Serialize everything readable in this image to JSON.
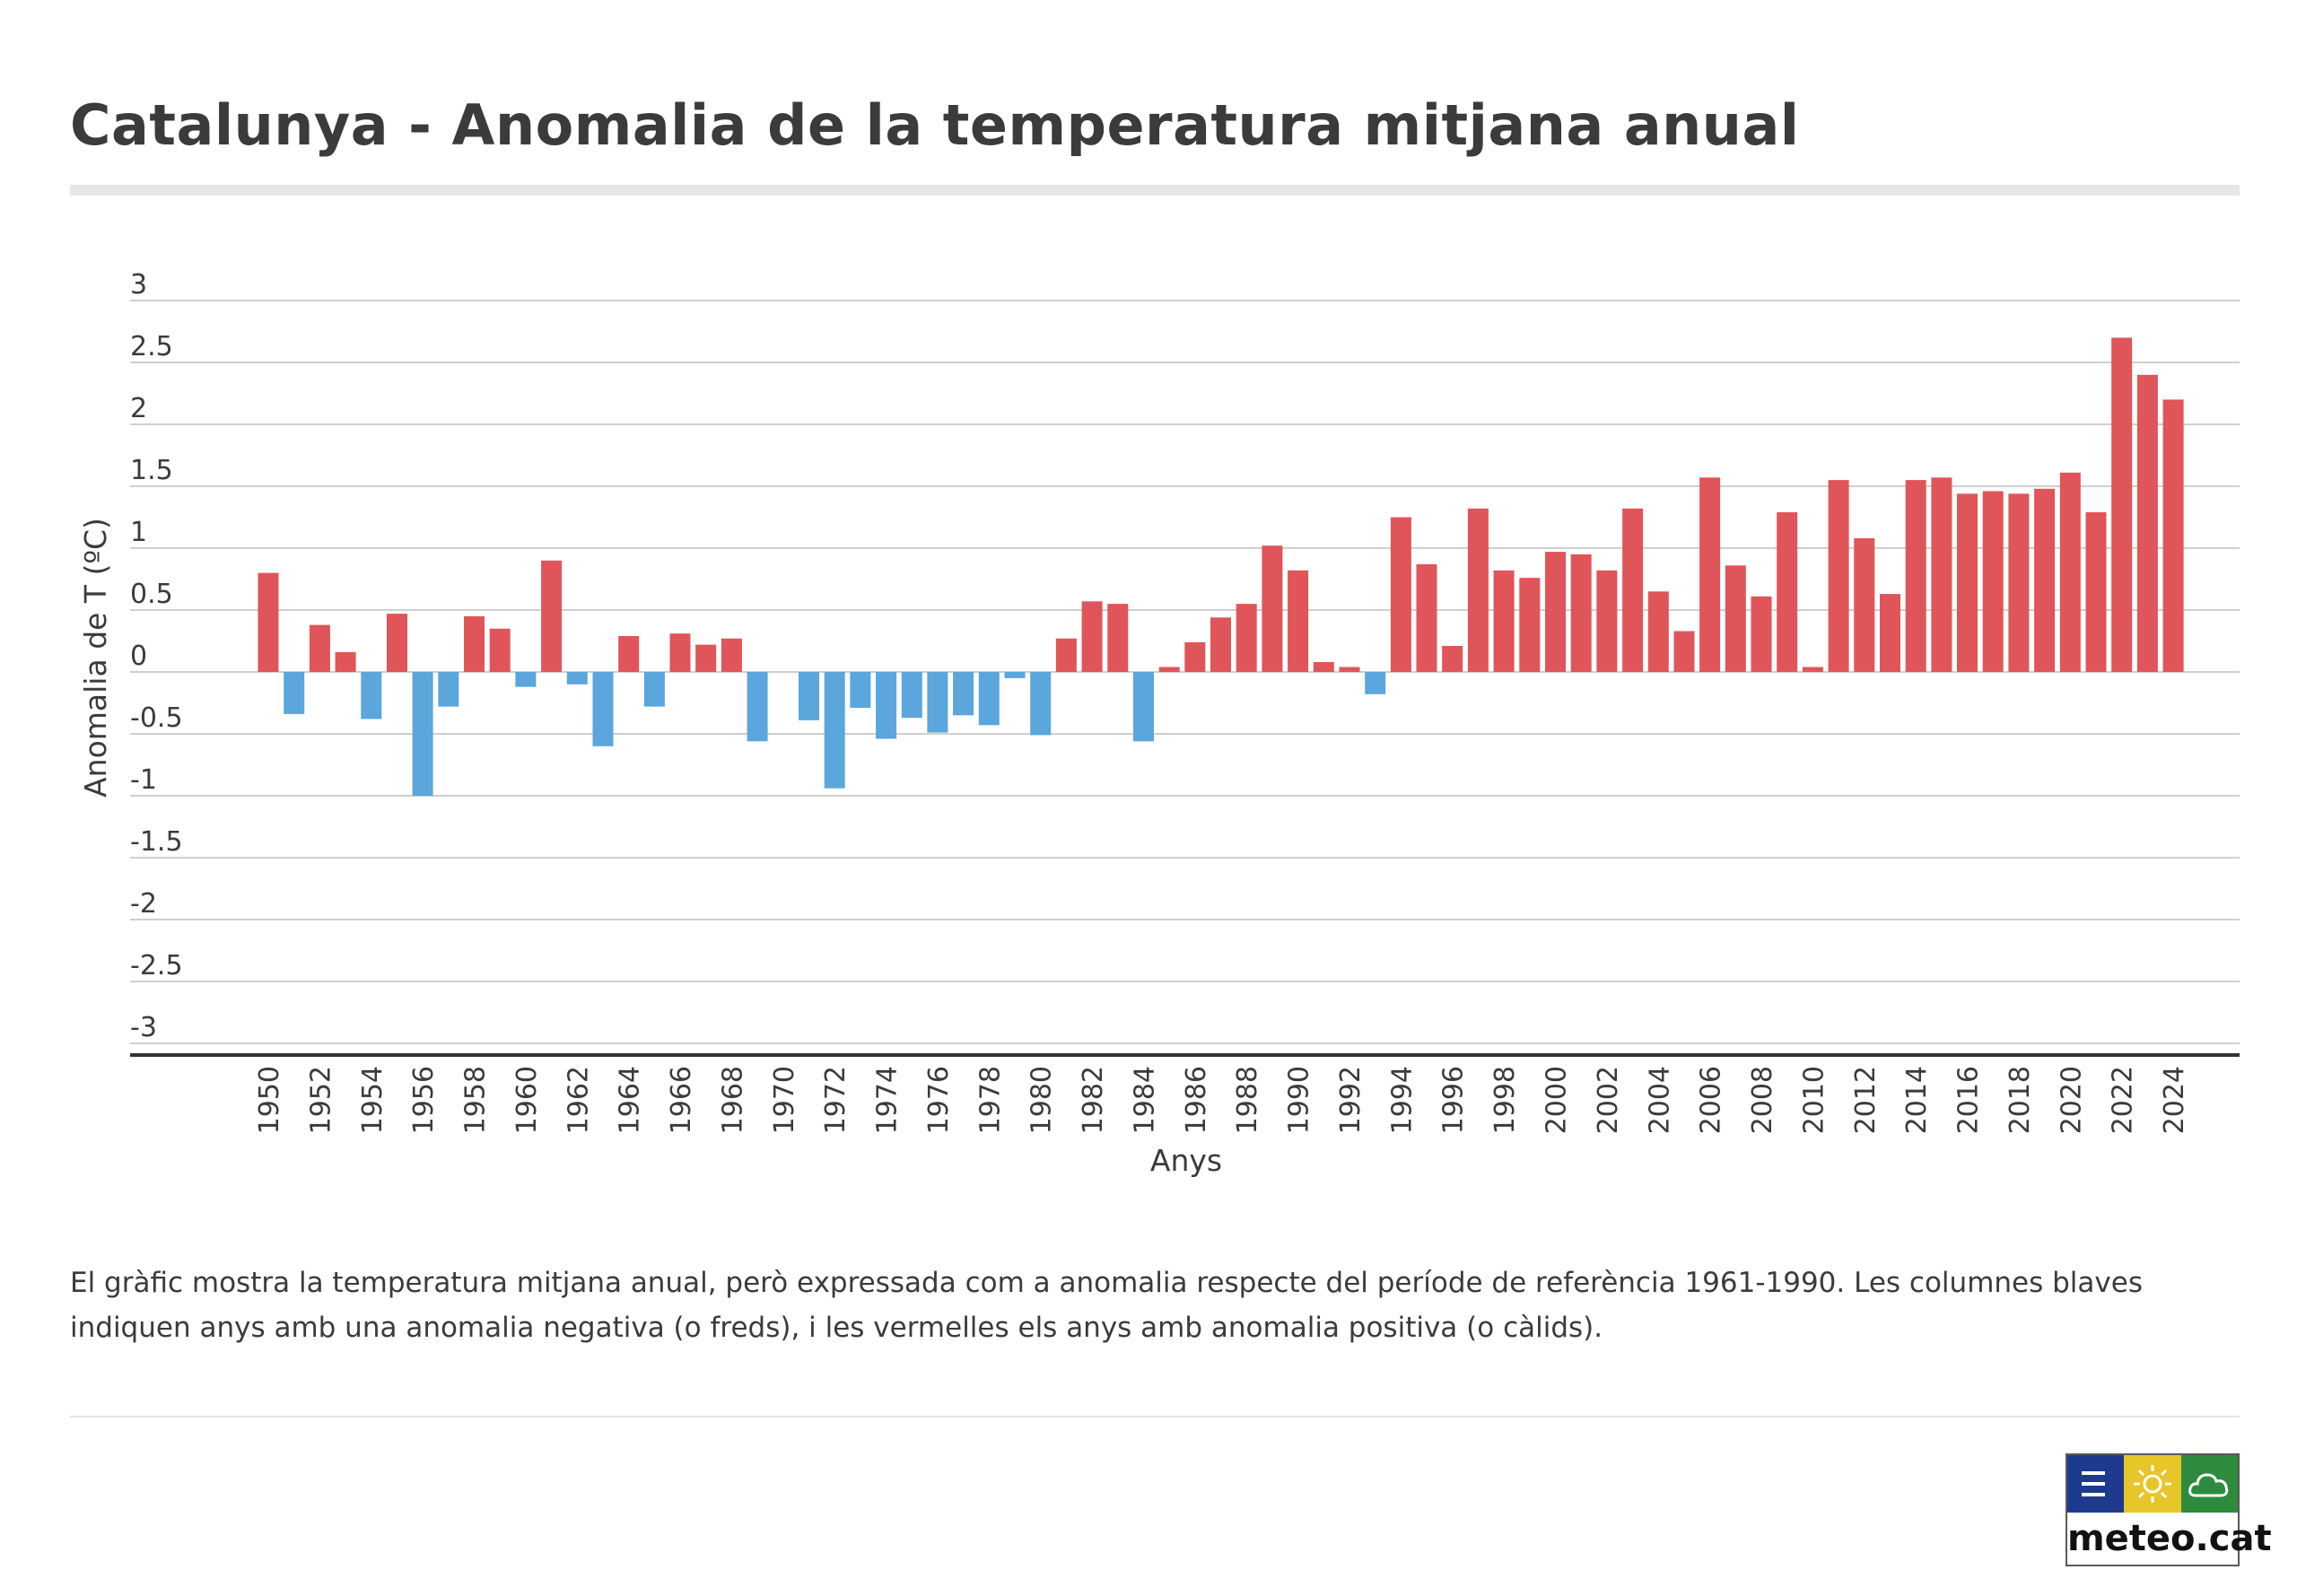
{
  "page": {
    "title": "Catalunya - Anomalia de la temperatura mitjana anual",
    "description": "El gràfic mostra la temperatura mitjana anual, però expressada com a anomalia respecte del període de referència 1961-1990. Les columnes blaves indiquen anys amb una anomalia negativa (o freds), i les vermelles els anys amb anomalia positiva (o càlids).",
    "logo": {
      "text": "meteo.cat",
      "icons": [
        "menu-lines-icon",
        "sun-icon",
        "cloud-icon"
      ],
      "colors": {
        "blue": "#1e3a8f",
        "yellow": "#e6c62a",
        "green": "#2e8b3e"
      }
    }
  },
  "chart_data": {
    "type": "bar",
    "title": "",
    "xlabel": "Anys",
    "ylabel": "Anomalia de T (ºC)",
    "ylim": [
      -3,
      3
    ],
    "yticks": [
      3,
      2.5,
      2,
      1.5,
      1,
      0.5,
      0,
      -0.5,
      -1,
      -1.5,
      -2,
      -2.5,
      -3
    ],
    "ytick_labels": [
      "3",
      "2.5",
      "2",
      "1.5",
      "1",
      "0.5",
      "0",
      "-0.5",
      "-1",
      "-1.5",
      "-2",
      "-2.5",
      "-3"
    ],
    "xtick_labels": [
      "1950",
      "1952",
      "1954",
      "1956",
      "1958",
      "1960",
      "1962",
      "1964",
      "1966",
      "1968",
      "1970",
      "1972",
      "1974",
      "1976",
      "1978",
      "1980",
      "1982",
      "1984",
      "1986",
      "1988",
      "1990",
      "1992",
      "1994",
      "1996",
      "1998",
      "2000",
      "2002",
      "2004",
      "2006",
      "2008",
      "2010",
      "2012",
      "2014",
      "2016",
      "2018",
      "2020",
      "2022",
      "2024"
    ],
    "grid": true,
    "legend": "none",
    "colors": {
      "positive": "#e05559",
      "negative": "#5ba6dc"
    },
    "categories": [
      1950,
      1951,
      1952,
      1953,
      1954,
      1955,
      1956,
      1957,
      1958,
      1959,
      1960,
      1961,
      1962,
      1963,
      1964,
      1965,
      1966,
      1967,
      1968,
      1969,
      1970,
      1971,
      1972,
      1973,
      1974,
      1975,
      1976,
      1977,
      1978,
      1979,
      1980,
      1981,
      1982,
      1983,
      1984,
      1985,
      1986,
      1987,
      1988,
      1989,
      1990,
      1991,
      1992,
      1993,
      1994,
      1995,
      1996,
      1997,
      1998,
      1999,
      2000,
      2001,
      2002,
      2003,
      2004,
      2005,
      2006,
      2007,
      2008,
      2009,
      2010,
      2011,
      2012,
      2013,
      2014,
      2015,
      2016,
      2017,
      2018,
      2019,
      2020,
      2021,
      2022,
      2023,
      2024
    ],
    "values": [
      0.8,
      -0.34,
      0.38,
      0.16,
      -0.38,
      0.47,
      -1.0,
      -0.28,
      0.45,
      0.35,
      -0.12,
      0.9,
      -0.1,
      -0.6,
      0.29,
      -0.28,
      0.31,
      0.22,
      0.27,
      -0.56,
      0.0,
      -0.39,
      -0.94,
      -0.29,
      -0.54,
      -0.37,
      -0.49,
      -0.35,
      -0.43,
      -0.05,
      -0.51,
      0.27,
      0.57,
      0.55,
      -0.56,
      0.04,
      0.24,
      0.44,
      0.55,
      1.02,
      0.82,
      0.08,
      0.04,
      -0.18,
      1.25,
      0.87,
      0.21,
      1.32,
      0.82,
      0.76,
      0.97,
      0.95,
      0.82,
      1.32,
      0.65,
      0.33,
      1.57,
      0.86,
      0.61,
      1.29,
      0.04,
      1.55,
      1.08,
      0.63,
      1.55,
      1.57,
      1.44,
      1.46,
      1.44,
      1.48,
      1.61,
      1.29,
      2.7,
      2.4,
      2.2
    ]
  }
}
